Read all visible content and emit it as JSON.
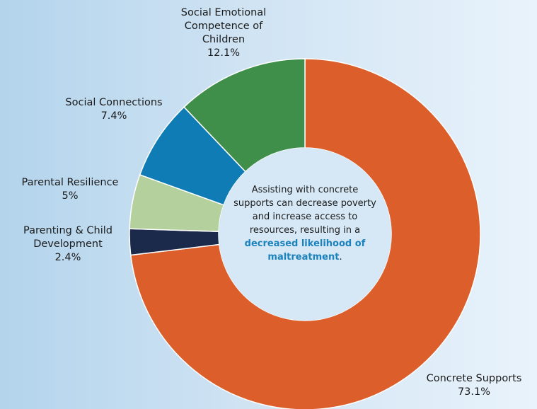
{
  "chart_data": {
    "type": "pie",
    "donut": true,
    "categories": [
      "Concrete Supports",
      "Parenting & Child Development",
      "Parental Resilience",
      "Social Connections",
      "Social Emotional Competence of Children"
    ],
    "values": [
      73.1,
      2.4,
      5,
      7.4,
      12.1
    ],
    "value_labels": [
      "73.1%",
      "2.4%",
      "5%",
      "7.4%",
      "12.1%"
    ],
    "colors": [
      "#db5e2b",
      "#1b2a4b",
      "#b4d09c",
      "#0f7cb5",
      "#3f8e4a"
    ],
    "legend": "none",
    "center_text": {
      "before": "Assisting with concrete supports can decrease poverty and increase access to resources, resulting in a ",
      "highlight": "decreased likelihood of maltreatment",
      "after": "."
    }
  }
}
